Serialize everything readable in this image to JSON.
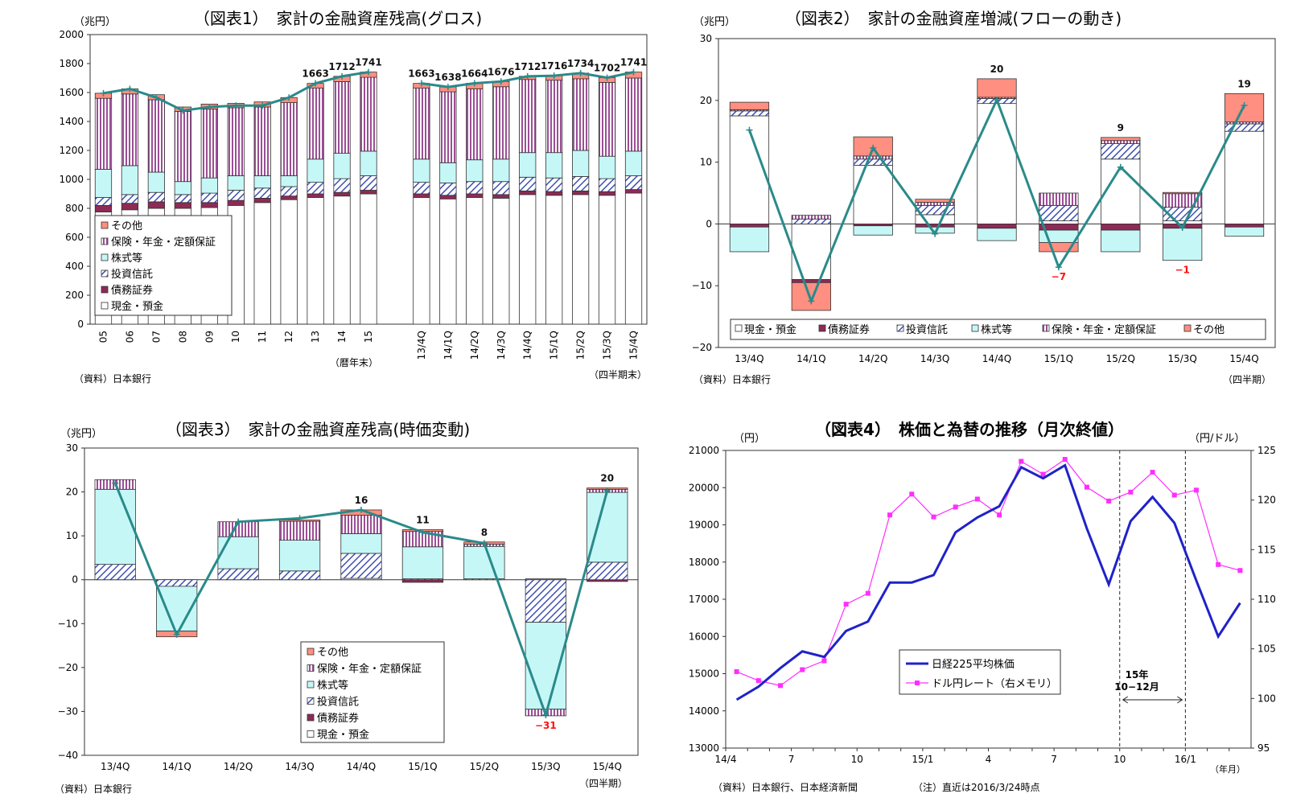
{
  "colors": {
    "cash": "#ffffff",
    "bonds": "#8e2a55",
    "trusts": "#3f4fb0",
    "stocks": "#c6f7f7",
    "insurance": "#9b4f95",
    "other": "#ff8f80",
    "line": "#2a8a8a",
    "nikkei": "#1f22c8",
    "usd": "#ff2eff",
    "neg": "#ff1010"
  },
  "chart_data": [
    {
      "id": "c1",
      "type": "bar",
      "title": "（図表1）　家計の金融資産残高(グロス)",
      "unit_label": "（兆円）",
      "ylim": [
        0,
        2000
      ],
      "yticks": [
        "0",
        "200",
        "400",
        "600",
        "800",
        "1000",
        "1200",
        "1400",
        "1600",
        "1800",
        "2000"
      ],
      "categories": [
        "05",
        "06",
        "07",
        "08",
        "09",
        "10",
        "11",
        "12",
        "13",
        "14",
        "15",
        "",
        "13/4Q",
        "14/1Q",
        "14/2Q",
        "14/3Q",
        "14/4Q",
        "15/1Q",
        "15/2Q",
        "15/3Q",
        "15/4Q"
      ],
      "series": [
        {
          "name": "現金・預金",
          "key": "cash",
          "values": [
            775,
            790,
            800,
            800,
            805,
            820,
            840,
            860,
            875,
            885,
            900,
            null,
            875,
            865,
            875,
            870,
            895,
            890,
            895,
            890,
            905
          ]
        },
        {
          "name": "債務証券",
          "key": "bonds",
          "values": [
            45,
            45,
            45,
            40,
            35,
            35,
            30,
            25,
            25,
            25,
            25,
            null,
            25,
            25,
            25,
            25,
            25,
            25,
            25,
            25,
            25
          ]
        },
        {
          "name": "投資信託",
          "key": "trusts",
          "values": [
            55,
            60,
            65,
            55,
            65,
            70,
            70,
            65,
            80,
            95,
            100,
            null,
            80,
            85,
            85,
            90,
            95,
            95,
            100,
            90,
            95
          ]
        },
        {
          "name": "株式等",
          "key": "stocks",
          "values": [
            195,
            200,
            140,
            90,
            105,
            100,
            85,
            75,
            160,
            175,
            170,
            null,
            160,
            140,
            150,
            155,
            170,
            175,
            180,
            155,
            170
          ]
        },
        {
          "name": "保険・年金・定額保証",
          "key": "insurance",
          "values": [
            490,
            495,
            500,
            485,
            475,
            470,
            475,
            505,
            490,
            495,
            510,
            null,
            490,
            490,
            490,
            500,
            505,
            500,
            495,
            510,
            505
          ]
        },
        {
          "name": "その他",
          "key": "other",
          "values": [
            35,
            35,
            35,
            30,
            35,
            30,
            35,
            35,
            33,
            37,
            36,
            null,
            33,
            33,
            39,
            36,
            22,
            31,
            39,
            32,
            41
          ]
        }
      ],
      "totals_line": [
        1595,
        1625,
        1565,
        1475,
        1500,
        1510,
        1510,
        1565,
        1663,
        1712,
        1741,
        null,
        1663,
        1638,
        1664,
        1676,
        1712,
        1716,
        1734,
        1702,
        1741
      ],
      "data_labels": [
        "",
        "",
        "",
        "",
        "",
        "",
        "",
        "",
        "1663",
        "1712",
        "1741",
        "",
        "1663",
        "1638",
        "1664",
        "1676",
        "1712",
        "1716",
        "1734",
        "1702",
        "1741"
      ],
      "x_note_left": "（暦年末）",
      "x_note_right": "（四半期末）",
      "legend": [
        "その他",
        "保険・年金・定額保証",
        "株式等",
        "投資信託",
        "債務証券",
        "現金・預金"
      ],
      "source": "（資料）日本銀行"
    },
    {
      "id": "c2",
      "type": "bar",
      "title": "（図表2）　家計の金融資産増減(フローの動き)",
      "unit_label": "（兆円）",
      "ylim": [
        -20,
        30
      ],
      "yticks": [
        "−20",
        "−10",
        "0",
        "10",
        "20",
        "30"
      ],
      "categories": [
        "13/4Q",
        "14/1Q",
        "14/2Q",
        "14/3Q",
        "14/4Q",
        "15/1Q",
        "15/2Q",
        "15/3Q",
        "15/4Q"
      ],
      "series": [
        {
          "name": "現金・預金",
          "key": "cash",
          "values": [
            17.5,
            -9,
            9.5,
            1.5,
            19.5,
            0.5,
            10.5,
            0.5,
            15
          ]
        },
        {
          "name": "債務証券",
          "key": "bonds",
          "values": [
            -0.5,
            -0.5,
            -0.3,
            -0.5,
            -0.7,
            -1,
            -1,
            -0.7,
            -0.5
          ]
        },
        {
          "name": "投資信託",
          "key": "trusts",
          "values": [
            0.8,
            0.8,
            1,
            1.5,
            0.8,
            2.5,
            2.5,
            2.2,
            1.2
          ]
        },
        {
          "name": "株式等",
          "key": "stocks",
          "values": [
            -4,
            0,
            -1.5,
            -1,
            -2,
            -2,
            -3.5,
            -5.2,
            -1.5
          ]
        },
        {
          "name": "保険・年金・定額保証",
          "key": "insurance",
          "values": [
            0.2,
            0.6,
            0.5,
            0.5,
            0.2,
            2,
            0.5,
            2.2,
            0.3
          ]
        },
        {
          "name": "その他",
          "key": "other",
          "values": [
            1.2,
            -4.5,
            3.1,
            0.5,
            3,
            -1.5,
            0.5,
            0.2,
            4.6
          ]
        }
      ],
      "totals_line": [
        15.2,
        -12.5,
        12.3,
        -1.6,
        20.1,
        -7,
        9.2,
        -0.6,
        19.2
      ],
      "data_labels": [
        "",
        "",
        "",
        "",
        "20",
        "−7",
        "9",
        "−1",
        "19"
      ],
      "x_note": "（四半期）",
      "legend": [
        "現金・預金",
        "債務証券",
        "投資信託",
        "株式等",
        "保険・年金・定額保証",
        "その他"
      ],
      "source": "（資料）日本銀行"
    },
    {
      "id": "c3",
      "type": "bar",
      "title": "（図表3）　家計の金融資産残高(時価変動)",
      "unit_label": "（兆円）",
      "ylim": [
        -40,
        30
      ],
      "yticks": [
        "−40",
        "−30",
        "−20",
        "−10",
        "0",
        "10",
        "20",
        "30"
      ],
      "categories": [
        "13/4Q",
        "14/1Q",
        "14/2Q",
        "14/3Q",
        "14/4Q",
        "15/1Q",
        "15/2Q",
        "15/3Q",
        "15/4Q"
      ],
      "series": [
        {
          "name": "現金・預金",
          "key": "cash",
          "values": [
            0,
            0,
            0,
            0,
            0.3,
            0,
            0,
            0,
            0
          ]
        },
        {
          "name": "債務証券",
          "key": "bonds",
          "values": [
            0,
            0,
            0,
            0,
            0,
            -0.6,
            0,
            0,
            -0.4
          ]
        },
        {
          "name": "投資信託",
          "key": "trusts",
          "values": [
            3.5,
            -1.5,
            2.5,
            2,
            5.7,
            0.2,
            0.2,
            -9.7,
            4
          ]
        },
        {
          "name": "株式等",
          "key": "stocks",
          "values": [
            17.1,
            -10.2,
            7.3,
            7,
            4.5,
            7.3,
            7.4,
            -19.8,
            15.9
          ]
        },
        {
          "name": "保険・年金・定額保証",
          "key": "insurance",
          "values": [
            2.2,
            0,
            3.4,
            4.3,
            4.2,
            3.5,
            0.5,
            -1.5,
            0.7
          ]
        },
        {
          "name": "その他",
          "key": "other",
          "values": [
            0,
            -1.3,
            0,
            0.3,
            1.2,
            0.4,
            0.5,
            0.2,
            0.3
          ]
        }
      ],
      "totals_line": [
        22,
        -12.5,
        13.2,
        14,
        15.9,
        10.8,
        8.3,
        -30.8,
        20.3
      ],
      "data_labels": [
        "",
        "",
        "",
        "",
        "16",
        "11",
        "8",
        "−31",
        "20"
      ],
      "x_note": "（四半期）",
      "legend": [
        "その他",
        "保険・年金・定額保証",
        "株式等",
        "投資信託",
        "債務証券",
        "現金・預金"
      ],
      "source": "（資料）日本銀行"
    },
    {
      "id": "c4",
      "type": "line",
      "title": "（図表4）　株価と為替の推移（月次終値）",
      "left_unit": "（円）",
      "right_unit": "（円/ドル）",
      "ylim_left": [
        13000,
        21000
      ],
      "ylim_right": [
        95,
        125
      ],
      "yticks_left": [
        "13000",
        "14000",
        "15000",
        "16000",
        "17000",
        "18000",
        "19000",
        "20000",
        "21000"
      ],
      "yticks_right": [
        "95",
        "100",
        "105",
        "110",
        "115",
        "120",
        "125"
      ],
      "x_labels": [
        "14/4",
        "",
        "",
        "7",
        "",
        "",
        "10",
        "",
        "",
        "15/1",
        "",
        "",
        "4",
        "",
        "",
        "7",
        "",
        "",
        "10",
        "",
        "",
        "16/1",
        "",
        ""
      ],
      "x_unit": "（年月）",
      "series": [
        {
          "name": "日経225平均株価",
          "key": "nikkei",
          "axis": "left",
          "values": [
            14300,
            14650,
            15150,
            15600,
            15450,
            16150,
            16400,
            17450,
            17450,
            17650,
            18800,
            19200,
            19500,
            20550,
            20250,
            20600,
            18900,
            17400,
            19100,
            19750,
            19050,
            17500,
            16000,
            16900
          ]
        },
        {
          "name": "ドル円レート（右メモリ）",
          "key": "usd",
          "axis": "right",
          "values": [
            102.7,
            101.8,
            101.3,
            102.9,
            103.8,
            109.5,
            110.6,
            118.5,
            120.6,
            118.3,
            119.3,
            120.1,
            118.5,
            123.9,
            122.6,
            124.1,
            121.3,
            119.9,
            120.8,
            122.8,
            120.5,
            121,
            113.5,
            112.9
          ]
        }
      ],
      "legend": [
        "日経225平均株価",
        "ドル円レート（右メモリ）"
      ],
      "shade_note_line1": "15年",
      "shade_note_line2": "10−12月",
      "source": "（資料）日本銀行、日本経済新聞",
      "note": "（注）直近は2016/3/24時点"
    }
  ]
}
